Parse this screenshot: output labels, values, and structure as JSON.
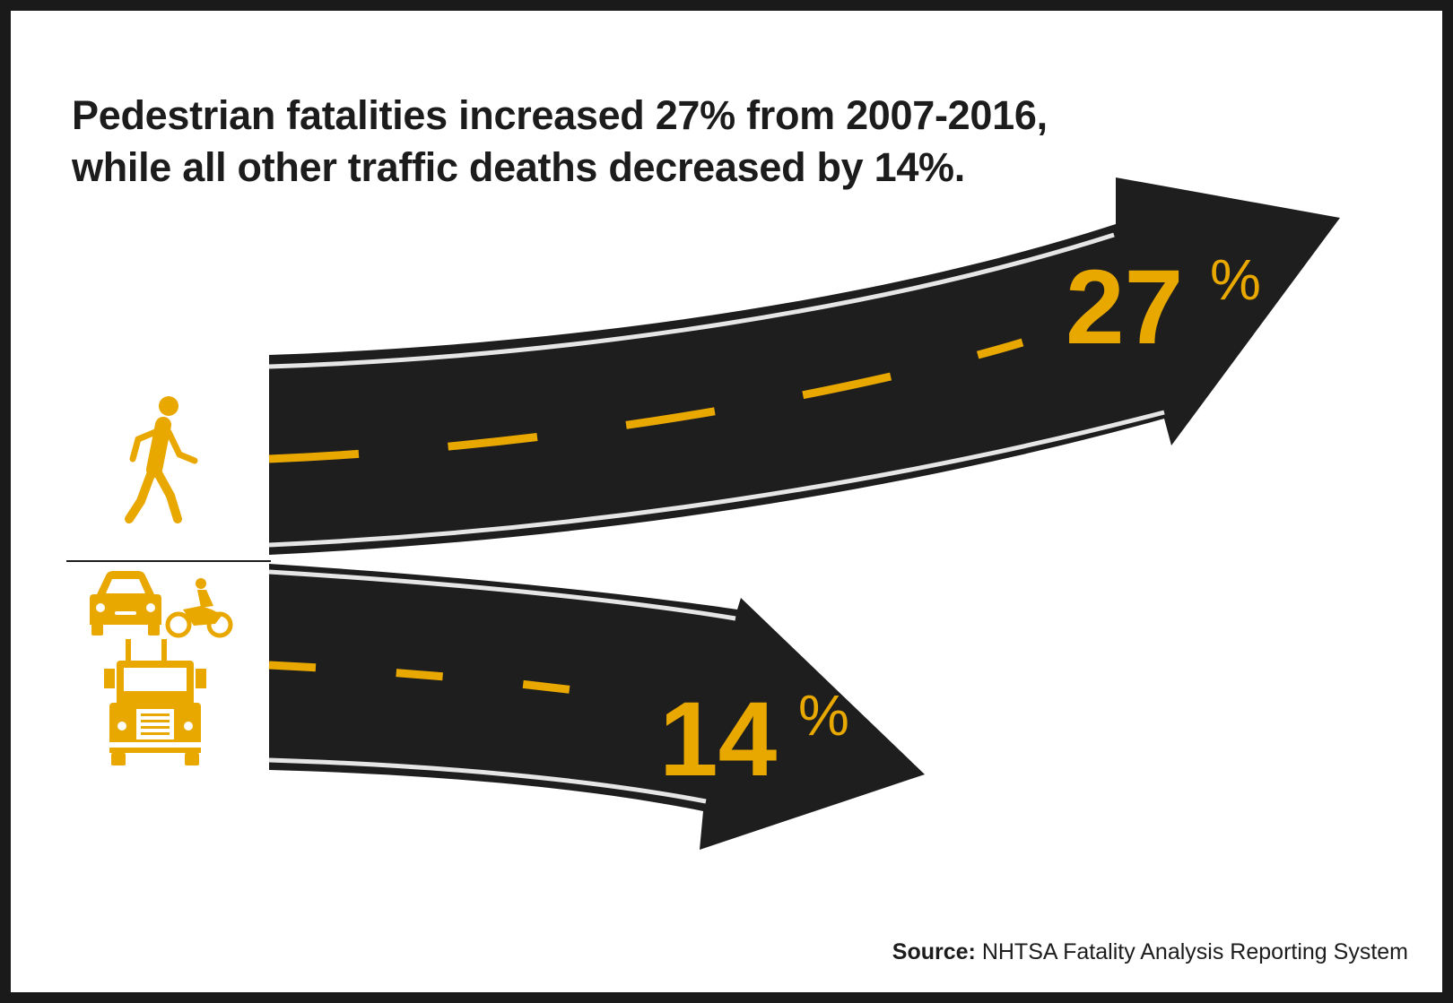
{
  "headline": {
    "line1": "Pedestrian fatalities increased 27% from 2007-2016,",
    "line2": "while all other traffic deaths decreased by 14%."
  },
  "pedestrian": {
    "value": "27",
    "unit": "%",
    "direction": "increase",
    "icon": "pedestrian-icon"
  },
  "other_traffic": {
    "value": "14",
    "unit": "%",
    "direction": "decrease",
    "icons": [
      "car-icon",
      "motorcycle-icon",
      "truck-icon"
    ]
  },
  "source": {
    "label": "Source:",
    "text": " NHTSA Fatality Analysis Reporting System"
  },
  "colors": {
    "road": "#1e1e1e",
    "accent": "#e9a800",
    "edge_line": "#e6e6e6",
    "text": "#1c1c1c",
    "frame": "#1a1a1a"
  }
}
